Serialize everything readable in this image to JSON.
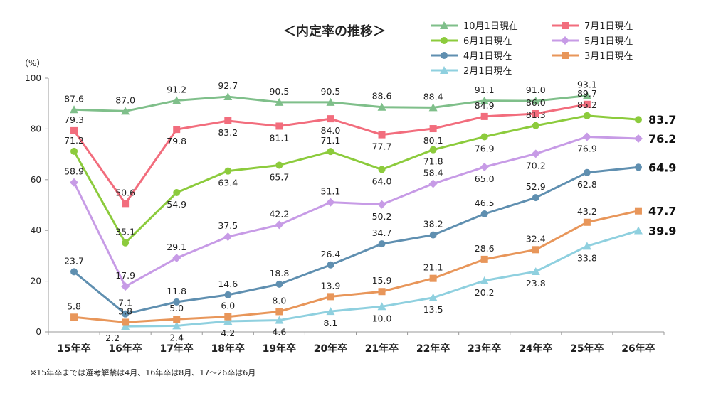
{
  "chart_data": {
    "type": "line",
    "title": "＜内定率の推移＞",
    "unit_label": "（%）",
    "categories": [
      "15年卒",
      "16年卒",
      "17年卒",
      "18年卒",
      "19年卒",
      "20年卒",
      "21年卒",
      "22年卒",
      "23年卒",
      "24年卒",
      "25年卒",
      "26年卒"
    ],
    "ylim": [
      0,
      100
    ],
    "yticks": [
      0,
      20,
      40,
      60,
      80,
      100
    ],
    "grid": false,
    "legend_position": "top-right",
    "footnote": "※15年卒までは選考解禁は4月、16年卒は8月、17～26卒は6月",
    "series": [
      {
        "name": "10月1日現在",
        "color": "#7fbf8a",
        "marker": "triangle",
        "values": [
          87.6,
          87.0,
          91.2,
          92.7,
          90.5,
          90.5,
          88.6,
          88.4,
          91.1,
          91.0,
          93.1,
          null
        ],
        "labels": [
          "87.6",
          "87.0",
          "91.2",
          "92.7",
          "90.5",
          "90.5",
          "88.6",
          "88.4",
          "91.1",
          "91.0",
          "93.1",
          null
        ],
        "final_label": null
      },
      {
        "name": "7月1日現在",
        "color": "#f26d7d",
        "marker": "square",
        "values": [
          79.3,
          50.6,
          79.8,
          83.2,
          81.1,
          84.0,
          77.7,
          80.1,
          84.9,
          86.0,
          89.7,
          null
        ],
        "labels": [
          "79.3",
          "50.6",
          "79.8",
          "83.2",
          "81.1",
          "84.0",
          "77.7",
          "80.1",
          "84.9",
          "86.0",
          "89.7",
          null
        ],
        "final_label": null
      },
      {
        "name": "6月1日現在",
        "color": "#8ccb3c",
        "marker": "circle",
        "values": [
          71.2,
          35.1,
          54.9,
          63.4,
          65.7,
          71.1,
          64.0,
          71.8,
          76.9,
          81.3,
          85.2,
          83.7
        ],
        "labels": [
          "71.2",
          "35.1",
          "54.9",
          "63.4",
          "65.7",
          "71.1",
          "64.0",
          "71.8",
          "76.9",
          "81.3",
          "85.2",
          null
        ],
        "final_label": "83.7"
      },
      {
        "name": "5月1日現在",
        "color": "#c79be6",
        "marker": "diamond",
        "values": [
          58.9,
          17.9,
          29.1,
          37.5,
          42.2,
          51.1,
          50.2,
          58.4,
          65.0,
          70.2,
          76.9,
          76.2
        ],
        "labels": [
          "58.9",
          "17.9",
          "29.1",
          "37.5",
          "42.2",
          "51.1",
          "50.2",
          "58.4",
          "65.0",
          "70.2",
          "76.9",
          null
        ],
        "final_label": "76.2"
      },
      {
        "name": "4月1日現在",
        "color": "#5f8fb0",
        "marker": "circle",
        "values": [
          23.7,
          7.1,
          11.8,
          14.6,
          18.8,
          26.4,
          34.7,
          38.2,
          46.5,
          52.9,
          62.8,
          64.9
        ],
        "labels": [
          "23.7",
          "7.1",
          "11.8",
          "14.6",
          "18.8",
          "26.4",
          "34.7",
          "38.2",
          "46.5",
          "52.9",
          "62.8",
          null
        ],
        "final_label": "64.9"
      },
      {
        "name": "3月1日現在",
        "color": "#e8965a",
        "marker": "square",
        "values": [
          5.8,
          3.8,
          5.0,
          6.0,
          8.0,
          13.9,
          15.9,
          21.1,
          28.6,
          32.4,
          43.2,
          47.7
        ],
        "labels": [
          "5.8",
          "3.8",
          "5.0",
          "6.0",
          "8.0",
          "13.9",
          "15.9",
          "21.1",
          "28.6",
          "32.4",
          "43.2",
          null
        ],
        "final_label": "47.7"
      },
      {
        "name": "2月1日現在",
        "color": "#8fd0df",
        "marker": "triangle",
        "values": [
          null,
          2.2,
          2.4,
          4.2,
          4.6,
          8.1,
          10.0,
          13.5,
          20.2,
          23.8,
          33.8,
          39.9
        ],
        "labels": [
          null,
          "2.2",
          "2.4",
          "4.2",
          "4.6",
          "8.1",
          "10.0",
          "13.5",
          "20.2",
          "23.8",
          "33.8",
          null
        ],
        "final_label": "39.9"
      }
    ]
  }
}
